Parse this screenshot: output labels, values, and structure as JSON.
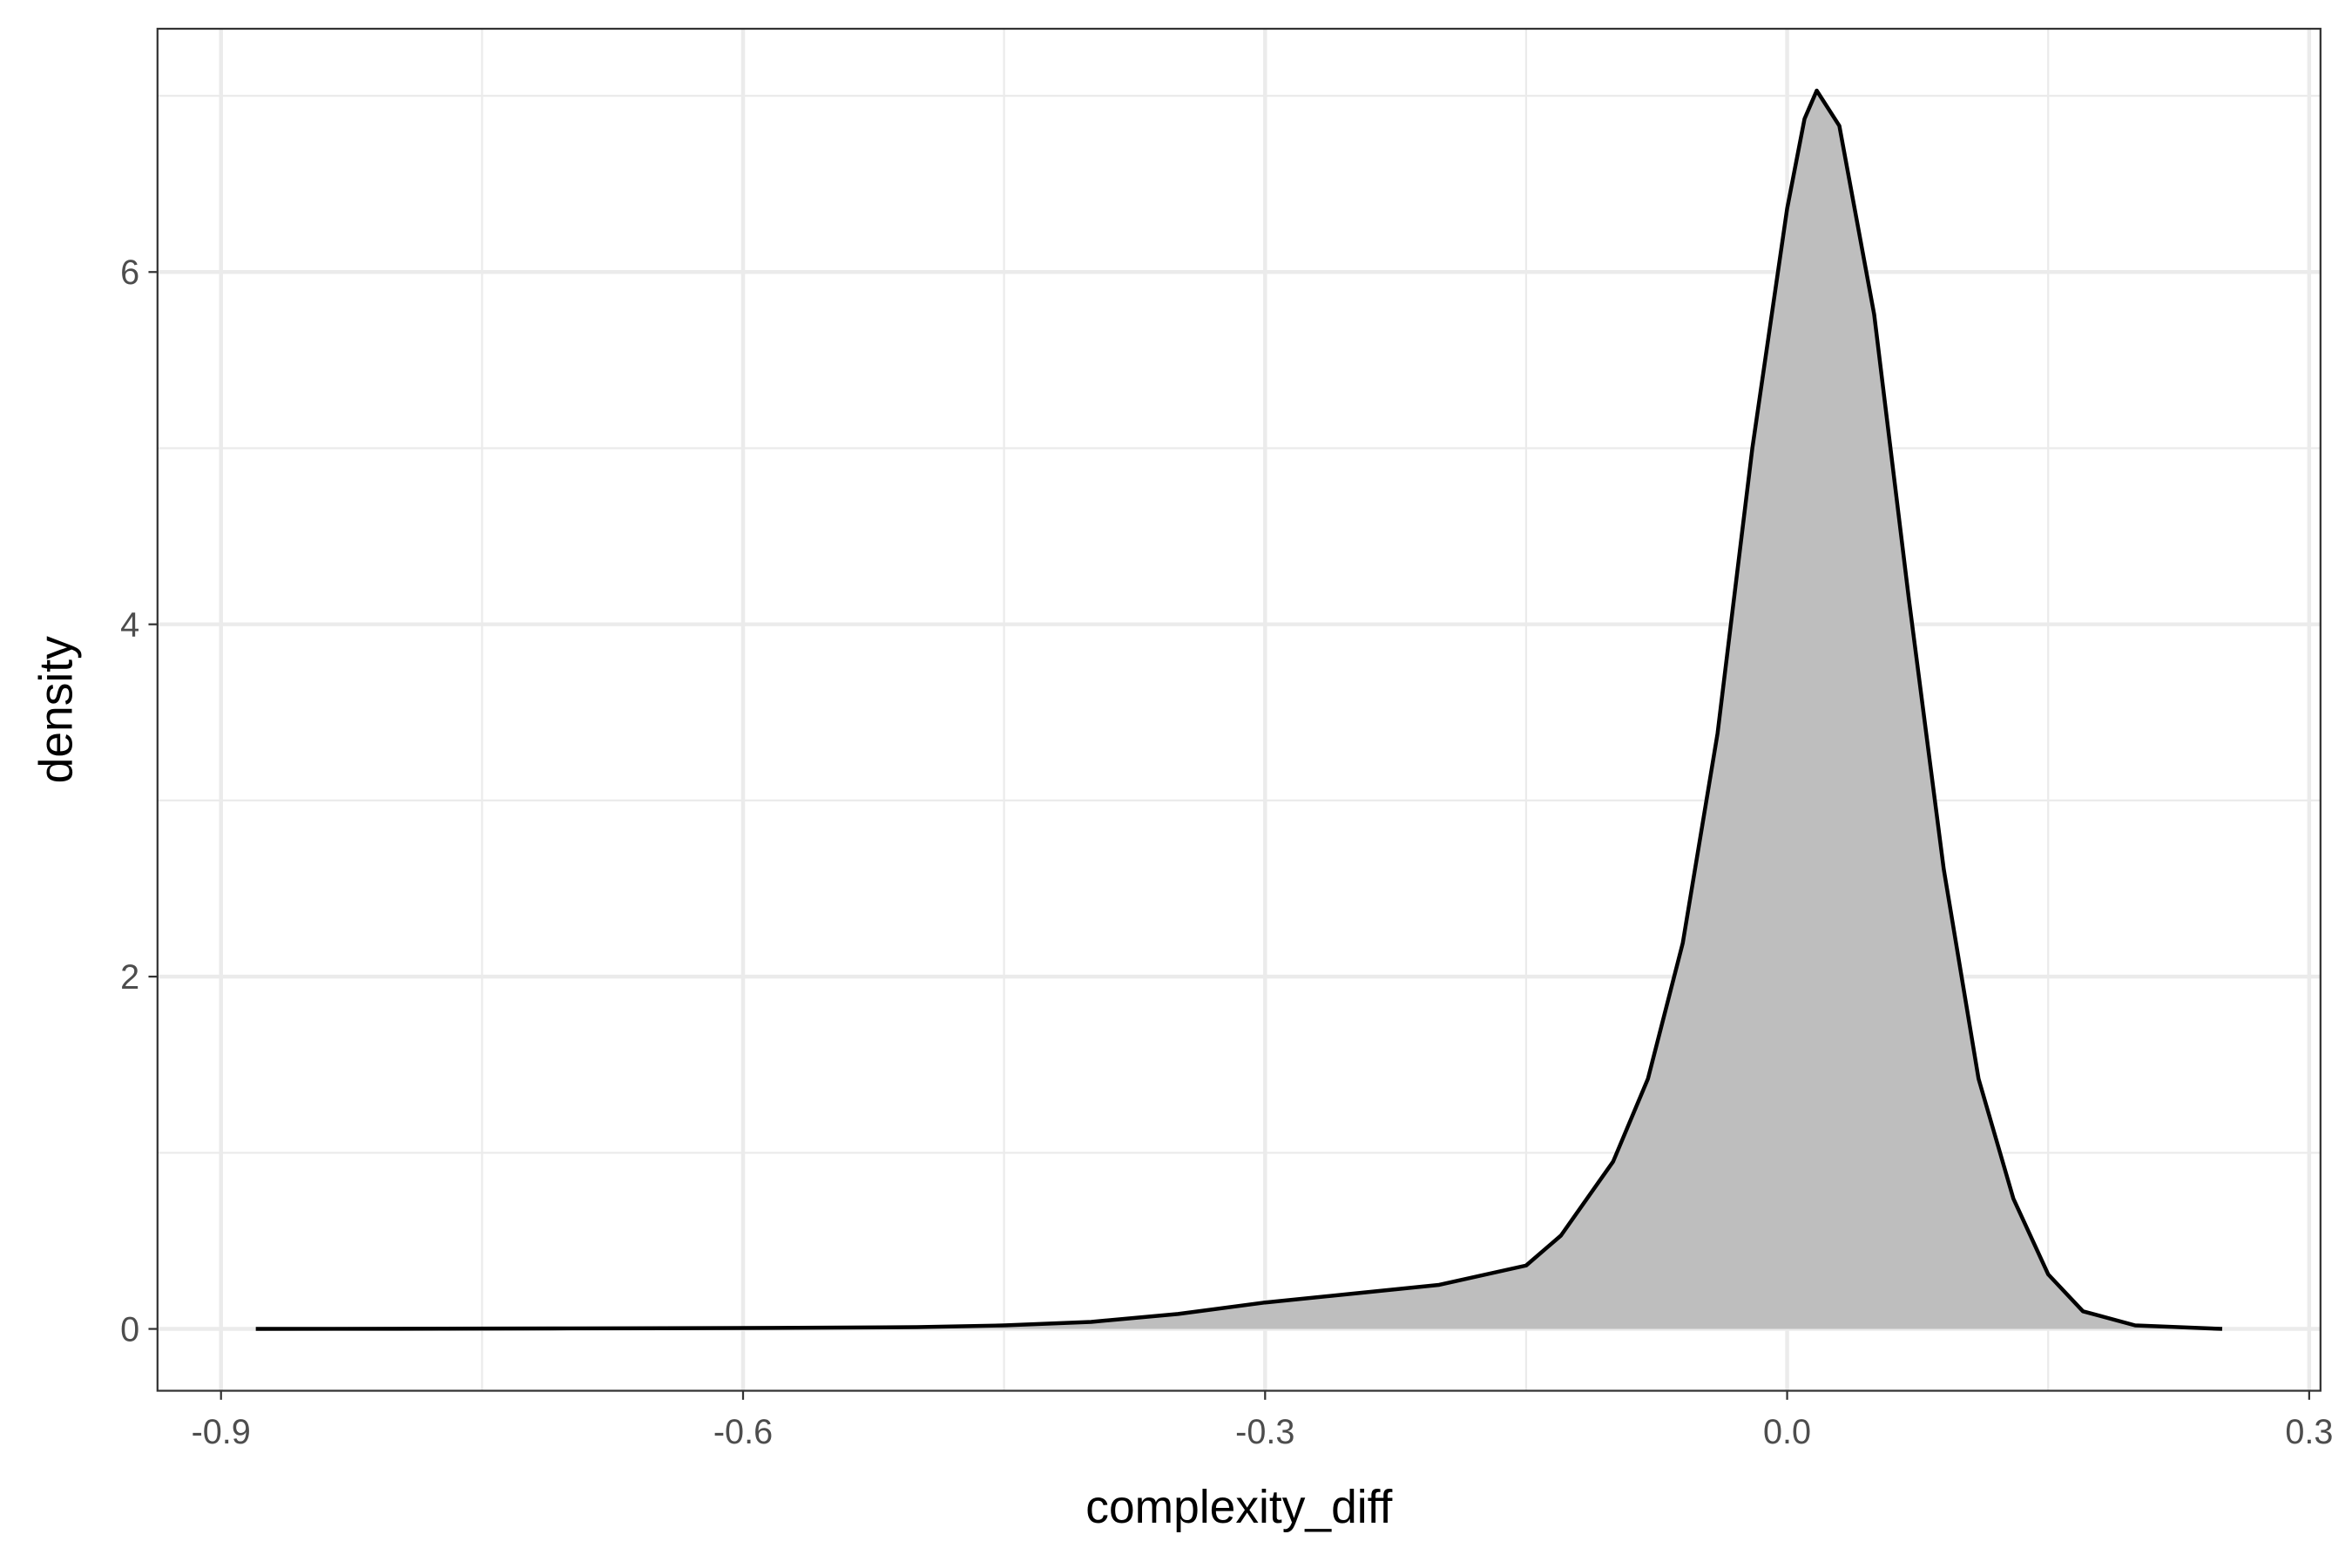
{
  "chart_data": {
    "type": "density",
    "x_label": "complexity_diff",
    "y_label": "density",
    "x": [
      -0.88,
      -0.8,
      -0.7,
      -0.6,
      -0.5,
      -0.45,
      -0.4,
      -0.35,
      -0.3,
      -0.25,
      -0.2,
      -0.15,
      -0.13,
      -0.1,
      -0.08,
      -0.06,
      -0.04,
      -0.02,
      0.0,
      0.01,
      0.017,
      0.03,
      0.05,
      0.07,
      0.09,
      0.11,
      0.13,
      0.15,
      0.17,
      0.2,
      0.25
    ],
    "values": [
      0,
      0.001,
      0.003,
      0.005,
      0.01,
      0.02,
      0.04,
      0.085,
      0.15,
      0.2,
      0.25,
      0.36,
      0.53,
      0.95,
      1.42,
      2.19,
      3.38,
      5.0,
      6.36,
      6.87,
      7.03,
      6.83,
      5.76,
      4.14,
      2.61,
      1.42,
      0.74,
      0.31,
      0.1,
      0.02,
      0
    ],
    "fill": "#bebebe",
    "color": "#000000",
    "xlim": [
      -0.9365,
      0.3065
    ],
    "xticks": [
      -0.9,
      -0.6,
      -0.3,
      {
        "value": 0,
        "label": "0.0"
      },
      0.3
    ],
    "x_minor_grid": [
      -0.75,
      -0.45,
      -0.15,
      0.15
    ],
    "ylim": [
      -0.351,
      7.381
    ],
    "yticks": [
      0,
      2,
      4,
      6
    ],
    "y_minor_grid": [
      1,
      3,
      5,
      7
    ],
    "grid": true
  }
}
